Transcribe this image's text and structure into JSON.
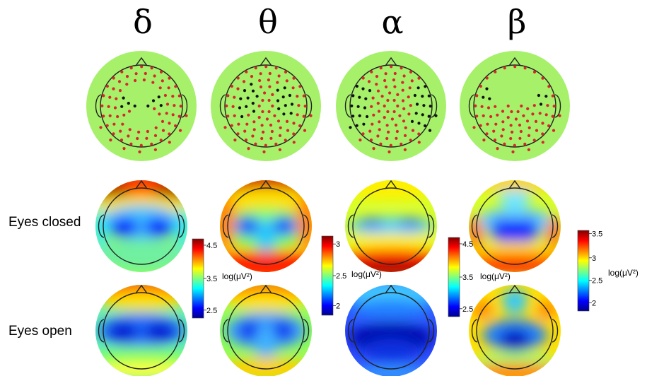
{
  "bands": [
    {
      "symbol": "δ"
    },
    {
      "symbol": "θ"
    },
    {
      "symbol": "α"
    },
    {
      "symbol": "β"
    }
  ],
  "conditions": {
    "closed": "Eyes closed",
    "open": "Eyes open"
  },
  "colorbar_unit": "log(μV²)",
  "colorbars": [
    {
      "ticks": [
        "4.5",
        "3.5",
        "2.5"
      ]
    },
    {
      "ticks": [
        "3",
        "2.5",
        "2"
      ]
    },
    {
      "ticks": [
        "4.5",
        "3.5",
        "2.5"
      ]
    },
    {
      "ticks": [
        "3.5",
        "3",
        "2.5",
        "2"
      ]
    }
  ],
  "colors": {
    "scalp_fill": "#a6f06a",
    "electrode_significant": "#d8262a",
    "electrode_nonsignificant": "#111111"
  }
}
